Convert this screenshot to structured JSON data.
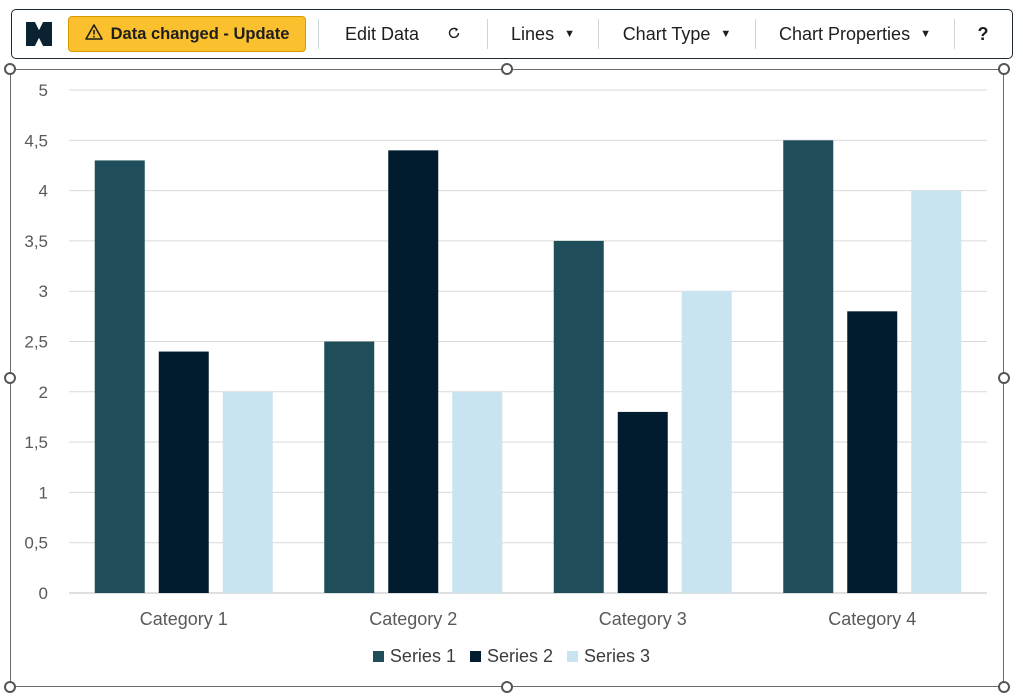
{
  "toolbar": {
    "logo_icon": "bowtie-logo-icon",
    "warning": {
      "icon": "warning-triangle-icon",
      "label": "Data changed - Update"
    },
    "edit_data": {
      "label": "Edit Data",
      "icon": "refresh-icon"
    },
    "lines": {
      "label": "Lines",
      "icon": "caret-down-icon"
    },
    "chart_type": {
      "label": "Chart Type",
      "icon": "caret-down-icon"
    },
    "chart_properties": {
      "label": "Chart Properties",
      "icon": "caret-down-icon"
    },
    "help": {
      "label": "?"
    }
  },
  "chart_data": {
    "type": "bar",
    "categories": [
      "Category 1",
      "Category 2",
      "Category 3",
      "Category 4"
    ],
    "series": [
      {
        "name": "Series 1",
        "color": "#1f4e5a",
        "values": [
          4.3,
          2.5,
          3.5,
          4.5
        ]
      },
      {
        "name": "Series 2",
        "color": "#021c2f",
        "values": [
          2.4,
          4.4,
          1.8,
          2.8
        ]
      },
      {
        "name": "Series 3",
        "color": "#c8e4f0",
        "values": [
          2,
          2,
          3,
          4
        ]
      }
    ],
    "ylim": [
      0,
      5
    ],
    "yticks": [
      "0",
      "0,5",
      "1",
      "1,5",
      "2",
      "2,5",
      "3",
      "3,5",
      "4",
      "4,5",
      "5"
    ],
    "grid": true,
    "legend_position": "bottom",
    "title": "",
    "xlabel": "",
    "ylabel": ""
  },
  "colors": {
    "warning_bg": "#fbc02d",
    "gridline": "#d9d9d9",
    "axis_text": "#595959"
  }
}
